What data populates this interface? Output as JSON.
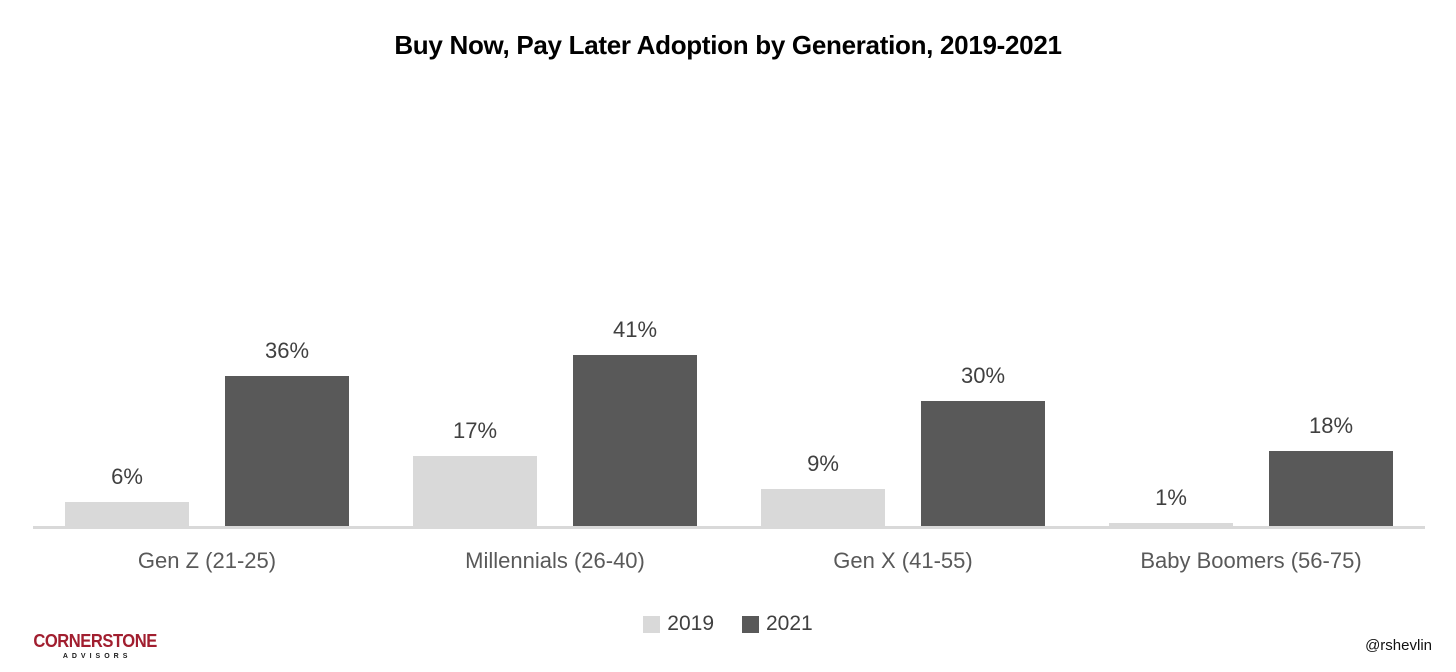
{
  "title": "Buy Now, Pay Later Adoption by Generation, 2019-2021",
  "chart_data": {
    "type": "bar",
    "title": "Buy Now, Pay Later Adoption by Generation, 2019-2021",
    "categories": [
      "Gen Z (21-25)",
      "Millennials (26-40)",
      "Gen X (41-55)",
      "Baby Boomers (56-75)"
    ],
    "series": [
      {
        "name": "2019",
        "color": "#d9d9d9",
        "values": [
          6,
          17,
          9,
          1
        ]
      },
      {
        "name": "2021",
        "color": "#595959",
        "values": [
          36,
          41,
          30,
          18
        ]
      }
    ],
    "value_suffix": "%",
    "data_labels": true,
    "xlabel": "",
    "ylabel": "",
    "ylim": [
      0,
      45
    ],
    "grid": false,
    "legend_position": "bottom"
  },
  "footer": {
    "logo_primary": "CORNERSTONE",
    "logo_secondary": "ADVISORS",
    "handle": "@rshevlin"
  },
  "colors": {
    "series_2019": "#d9d9d9",
    "series_2021": "#595959",
    "axis_line": "#d9d9d9",
    "data_label_text": "#404040",
    "category_text": "#595959",
    "logo_red": "#a11e2f"
  }
}
